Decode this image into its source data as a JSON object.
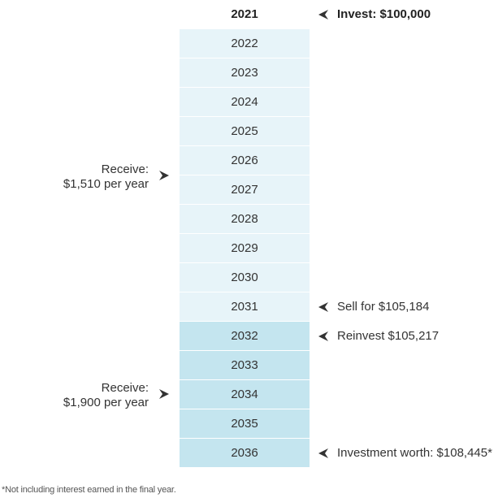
{
  "years": [
    "2021",
    "2022",
    "2023",
    "2024",
    "2025",
    "2026",
    "2027",
    "2028",
    "2029",
    "2030",
    "2031",
    "2032",
    "2033",
    "2034",
    "2035",
    "2036"
  ],
  "right_annotations": {
    "invest": "Invest: $100,000",
    "sell": "Sell for $105,184",
    "reinvest": "Reinvest $105,217",
    "worth": "Investment worth: $108,445*"
  },
  "left_annotations": {
    "receive_1_line1": "Receive:",
    "receive_1_line2": "$1,510 per year",
    "receive_2_line1": "Receive:",
    "receive_2_line2": "$1,900 per year"
  },
  "footnote": "*Not including interest earned in the final year.",
  "colors": {
    "first_period": "#e7f4f9",
    "second_period": "#c4e5ef",
    "arrow": "#333333"
  }
}
